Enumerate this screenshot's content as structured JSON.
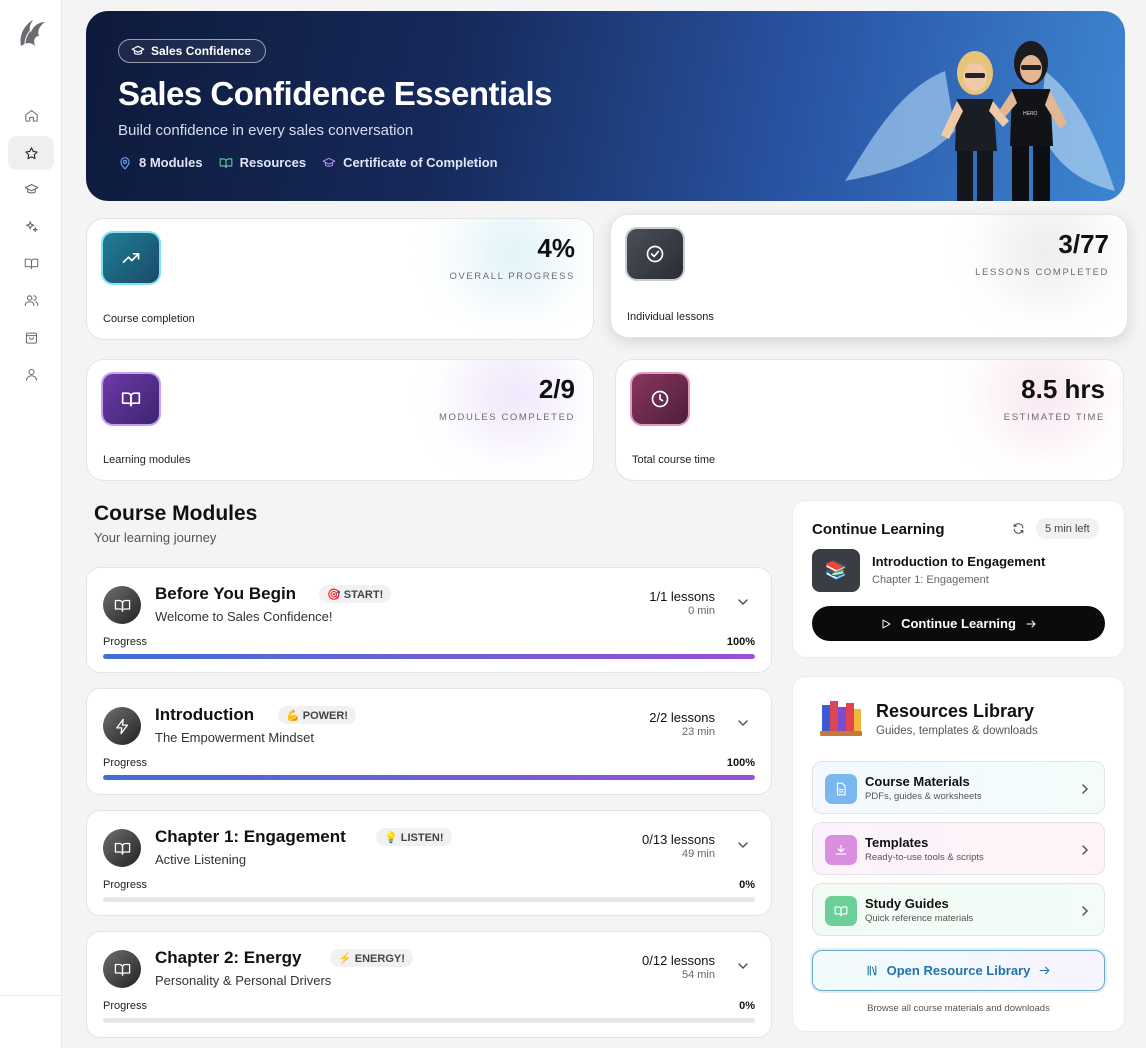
{
  "hero": {
    "badge": "Sales Confidence",
    "title": "Sales Confidence Essentials",
    "subtitle": "Build confidence in every sales conversation",
    "meta": [
      "8 Modules",
      "Resources",
      "Certificate of Completion"
    ]
  },
  "stats": [
    {
      "value": "4%",
      "label": "OVERALL PROGRESS",
      "caption": "Course completion"
    },
    {
      "value": "3/77",
      "label": "LESSONS COMPLETED",
      "caption": "Individual lessons"
    },
    {
      "value": "2/9",
      "label": "MODULES COMPLETED",
      "caption": "Learning modules"
    },
    {
      "value": "8.5 hrs",
      "label": "ESTIMATED TIME",
      "caption": "Total course time"
    }
  ],
  "modules_section": {
    "title": "Course Modules",
    "subtitle": "Your learning journey"
  },
  "modules": [
    {
      "title": "Before You Begin",
      "tag": "🎯 START!",
      "subtitle": "Welcome to Sales Confidence!",
      "lessons": "1/1 lessons",
      "minutes": "0 min",
      "progress_label": "Progress",
      "progress_pct": "100%",
      "progress": 1.0
    },
    {
      "title": "Introduction",
      "tag": "💪 POWER!",
      "subtitle": "The Empowerment Mindset",
      "lessons": "2/2 lessons",
      "minutes": "23 min",
      "progress_label": "Progress",
      "progress_pct": "100%",
      "progress": 1.0
    },
    {
      "title": "Chapter 1: Engagement",
      "tag": "💡 LISTEN!",
      "subtitle": "Active Listening",
      "lessons": "0/13 lessons",
      "minutes": "49 min",
      "progress_label": "Progress",
      "progress_pct": "0%",
      "progress": 0
    },
    {
      "title": "Chapter 2: Energy",
      "tag": "⚡ ENERGY!",
      "subtitle": "Personality & Personal Drivers",
      "lessons": "0/12 lessons",
      "minutes": "54 min",
      "progress_label": "Progress",
      "progress_pct": "0%",
      "progress": 0
    }
  ],
  "continue": {
    "title": "Continue Learning",
    "time_left": "5 min left",
    "lesson": "Introduction to Engagement",
    "chapter": "Chapter 1: Engagement",
    "button": "Continue Learning"
  },
  "resources": {
    "title": "Resources Library",
    "subtitle": "Guides, templates & downloads",
    "items": [
      {
        "title": "Course Materials",
        "subtitle": "PDFs, guides & worksheets"
      },
      {
        "title": "Templates",
        "subtitle": "Ready-to-use tools & scripts"
      },
      {
        "title": "Study Guides",
        "subtitle": "Quick reference materials"
      }
    ],
    "button": "Open Resource Library",
    "footer": "Browse all course materials and downloads"
  }
}
